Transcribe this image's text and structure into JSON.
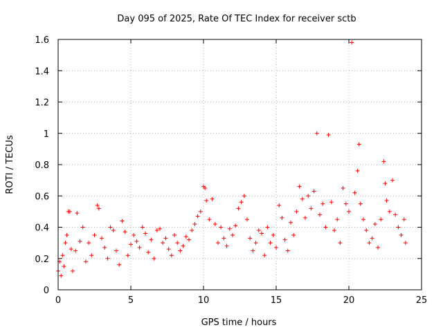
{
  "chart_data": {
    "type": "scatter",
    "title": "Day 095 of 2025, Rate Of TEC Index for receiver sctb",
    "xlabel": "GPS time / hours",
    "ylabel": "ROTI / TECUs",
    "xlim": [
      0,
      25
    ],
    "ylim": [
      0,
      1.6
    ],
    "x_ticks": [
      0,
      5,
      10,
      15,
      20,
      25
    ],
    "y_ticks": [
      0,
      0.2,
      0.4,
      0.6,
      0.8,
      1,
      1.2,
      1.4,
      1.6
    ],
    "x_tick_labels": [
      "0",
      "5",
      "10",
      "15",
      "20",
      "25"
    ],
    "y_tick_labels": [
      "0",
      "0.2",
      "0.4",
      "0.6",
      "0.8",
      "1",
      "1.2",
      "1.4",
      "1.6"
    ],
    "grid": true,
    "marker": "plus",
    "series": [
      {
        "name": "ROTI",
        "color": "#ff0000",
        "points": [
          [
            0.0,
            0.12
          ],
          [
            0.1,
            0.18
          ],
          [
            0.2,
            0.09
          ],
          [
            0.3,
            0.22
          ],
          [
            0.4,
            0.15
          ],
          [
            0.5,
            0.3
          ],
          [
            0.6,
            0.35
          ],
          [
            0.7,
            0.5
          ],
          [
            0.8,
            0.5
          ],
          [
            0.9,
            0.26
          ],
          [
            1.0,
            0.12
          ],
          [
            1.2,
            0.25
          ],
          [
            1.3,
            0.49
          ],
          [
            1.5,
            0.31
          ],
          [
            1.7,
            0.4
          ],
          [
            1.9,
            0.18
          ],
          [
            2.1,
            0.3
          ],
          [
            2.3,
            0.22
          ],
          [
            2.5,
            0.35
          ],
          [
            2.7,
            0.54
          ],
          [
            2.8,
            0.52
          ],
          [
            3.0,
            0.33
          ],
          [
            3.2,
            0.27
          ],
          [
            3.4,
            0.2
          ],
          [
            3.6,
            0.4
          ],
          [
            3.8,
            0.38
          ],
          [
            4.0,
            0.25
          ],
          [
            4.2,
            0.16
          ],
          [
            4.4,
            0.44
          ],
          [
            4.6,
            0.37
          ],
          [
            4.8,
            0.22
          ],
          [
            5.0,
            0.29
          ],
          [
            5.2,
            0.35
          ],
          [
            5.4,
            0.31
          ],
          [
            5.6,
            0.27
          ],
          [
            5.8,
            0.4
          ],
          [
            6.0,
            0.36
          ],
          [
            6.2,
            0.24
          ],
          [
            6.4,
            0.32
          ],
          [
            6.6,
            0.2
          ],
          [
            6.8,
            0.38
          ],
          [
            7.0,
            0.39
          ],
          [
            7.2,
            0.3
          ],
          [
            7.4,
            0.33
          ],
          [
            7.6,
            0.26
          ],
          [
            7.8,
            0.22
          ],
          [
            8.0,
            0.35
          ],
          [
            8.2,
            0.3
          ],
          [
            8.4,
            0.25
          ],
          [
            8.6,
            0.28
          ],
          [
            8.8,
            0.34
          ],
          [
            9.0,
            0.32
          ],
          [
            9.2,
            0.38
          ],
          [
            9.4,
            0.42
          ],
          [
            9.6,
            0.47
          ],
          [
            9.8,
            0.5
          ],
          [
            10.0,
            0.66
          ],
          [
            10.1,
            0.65
          ],
          [
            10.2,
            0.57
          ],
          [
            10.4,
            0.45
          ],
          [
            10.6,
            0.58
          ],
          [
            10.8,
            0.42
          ],
          [
            11.0,
            0.3
          ],
          [
            11.2,
            0.4
          ],
          [
            11.4,
            0.33
          ],
          [
            11.6,
            0.28
          ],
          [
            11.8,
            0.39
          ],
          [
            12.0,
            0.35
          ],
          [
            12.2,
            0.41
          ],
          [
            12.4,
            0.52
          ],
          [
            12.6,
            0.56
          ],
          [
            12.8,
            0.6
          ],
          [
            13.0,
            0.45
          ],
          [
            13.2,
            0.33
          ],
          [
            13.4,
            0.25
          ],
          [
            13.6,
            0.3
          ],
          [
            13.8,
            0.38
          ],
          [
            14.0,
            0.36
          ],
          [
            14.2,
            0.22
          ],
          [
            14.4,
            0.4
          ],
          [
            14.6,
            0.3
          ],
          [
            14.8,
            0.35
          ],
          [
            15.0,
            0.27
          ],
          [
            15.2,
            0.54
          ],
          [
            15.4,
            0.46
          ],
          [
            15.6,
            0.32
          ],
          [
            15.8,
            0.25
          ],
          [
            16.0,
            0.43
          ],
          [
            16.2,
            0.35
          ],
          [
            16.4,
            0.5
          ],
          [
            16.6,
            0.66
          ],
          [
            16.8,
            0.58
          ],
          [
            17.0,
            0.46
          ],
          [
            17.2,
            0.6
          ],
          [
            17.4,
            0.52
          ],
          [
            17.6,
            0.63
          ],
          [
            17.8,
            1.0
          ],
          [
            18.0,
            0.48
          ],
          [
            18.2,
            0.55
          ],
          [
            18.4,
            0.4
          ],
          [
            18.6,
            0.99
          ],
          [
            18.8,
            0.56
          ],
          [
            19.0,
            0.38
          ],
          [
            19.2,
            0.45
          ],
          [
            19.4,
            0.3
          ],
          [
            19.6,
            0.65
          ],
          [
            19.8,
            0.55
          ],
          [
            20.0,
            0.5
          ],
          [
            20.2,
            1.58
          ],
          [
            20.4,
            0.62
          ],
          [
            20.6,
            0.76
          ],
          [
            20.7,
            0.93
          ],
          [
            20.8,
            0.55
          ],
          [
            21.0,
            0.45
          ],
          [
            21.2,
            0.38
          ],
          [
            21.4,
            0.3
          ],
          [
            21.6,
            0.33
          ],
          [
            21.8,
            0.42
          ],
          [
            22.0,
            0.27
          ],
          [
            22.2,
            0.45
          ],
          [
            22.4,
            0.82
          ],
          [
            22.5,
            0.68
          ],
          [
            22.6,
            0.57
          ],
          [
            22.8,
            0.5
          ],
          [
            23.0,
            0.7
          ],
          [
            23.2,
            0.48
          ],
          [
            23.4,
            0.4
          ],
          [
            23.6,
            0.35
          ],
          [
            23.8,
            0.45
          ],
          [
            23.9,
            0.3
          ]
        ]
      }
    ]
  }
}
